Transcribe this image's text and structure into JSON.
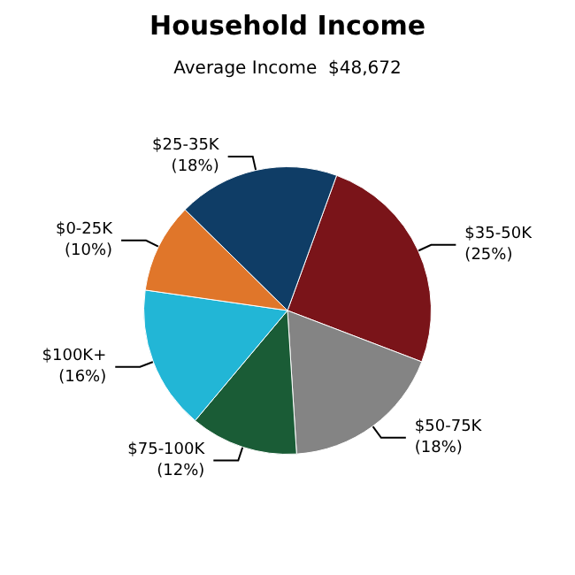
{
  "chart_data": {
    "type": "pie",
    "title": "Household Income",
    "subtitle": "Average Income  $48,672",
    "categories": [
      "$35-50K",
      "$50-75K",
      "$75-100K",
      "$100K+",
      "$0-25K",
      "$25-35K"
    ],
    "values": [
      25,
      18,
      12,
      16,
      10,
      18
    ],
    "value_labels": [
      "(25%)",
      "(18%)",
      "(12%)",
      "(16%)",
      "(10%)",
      "(18%)"
    ],
    "colors": [
      "#7a1419",
      "#848484",
      "#1a5c36",
      "#22b6d6",
      "#e0762a",
      "#0f3d66"
    ],
    "legend": false
  }
}
